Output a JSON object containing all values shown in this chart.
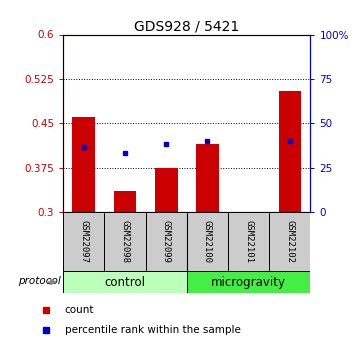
{
  "title": "GDS928 / 5421",
  "samples": [
    "GSM22097",
    "GSM22098",
    "GSM22099",
    "GSM22100",
    "GSM22101",
    "GSM22102"
  ],
  "red_bar_tops": [
    0.46,
    0.335,
    0.375,
    0.415,
    0.3,
    0.505
  ],
  "blue_sq_vals": [
    0.41,
    0.4,
    0.415,
    0.42,
    null,
    0.42
  ],
  "bar_base": 0.3,
  "ylim_left": [
    0.3,
    0.6
  ],
  "ylim_right": [
    0,
    100
  ],
  "yticks_left": [
    0.3,
    0.375,
    0.45,
    0.525,
    0.6
  ],
  "yticks_right": [
    0,
    25,
    50,
    75,
    100
  ],
  "ytick_labels_left": [
    "0.3",
    "0.375",
    "0.45",
    "0.525",
    "0.6"
  ],
  "ytick_labels_right": [
    "0",
    "25",
    "50",
    "75",
    "100%"
  ],
  "hlines": [
    0.375,
    0.45,
    0.525
  ],
  "groups": [
    {
      "label": "control",
      "indices": [
        0,
        1,
        2
      ],
      "color": "#bbffbb"
    },
    {
      "label": "microgravity",
      "indices": [
        3,
        4,
        5
      ],
      "color": "#44ee44"
    }
  ],
  "red_color": "#cc0000",
  "blue_color": "#0000cc",
  "bar_width": 0.55,
  "legend_count_label": "count",
  "legend_pct_label": "percentile rank within the sample",
  "protocol_label": "protocol",
  "title_fontsize": 10,
  "tick_fontsize": 7.5,
  "group_fontsize": 8.5,
  "legend_fontsize": 7.5,
  "sample_fontsize": 6.5
}
